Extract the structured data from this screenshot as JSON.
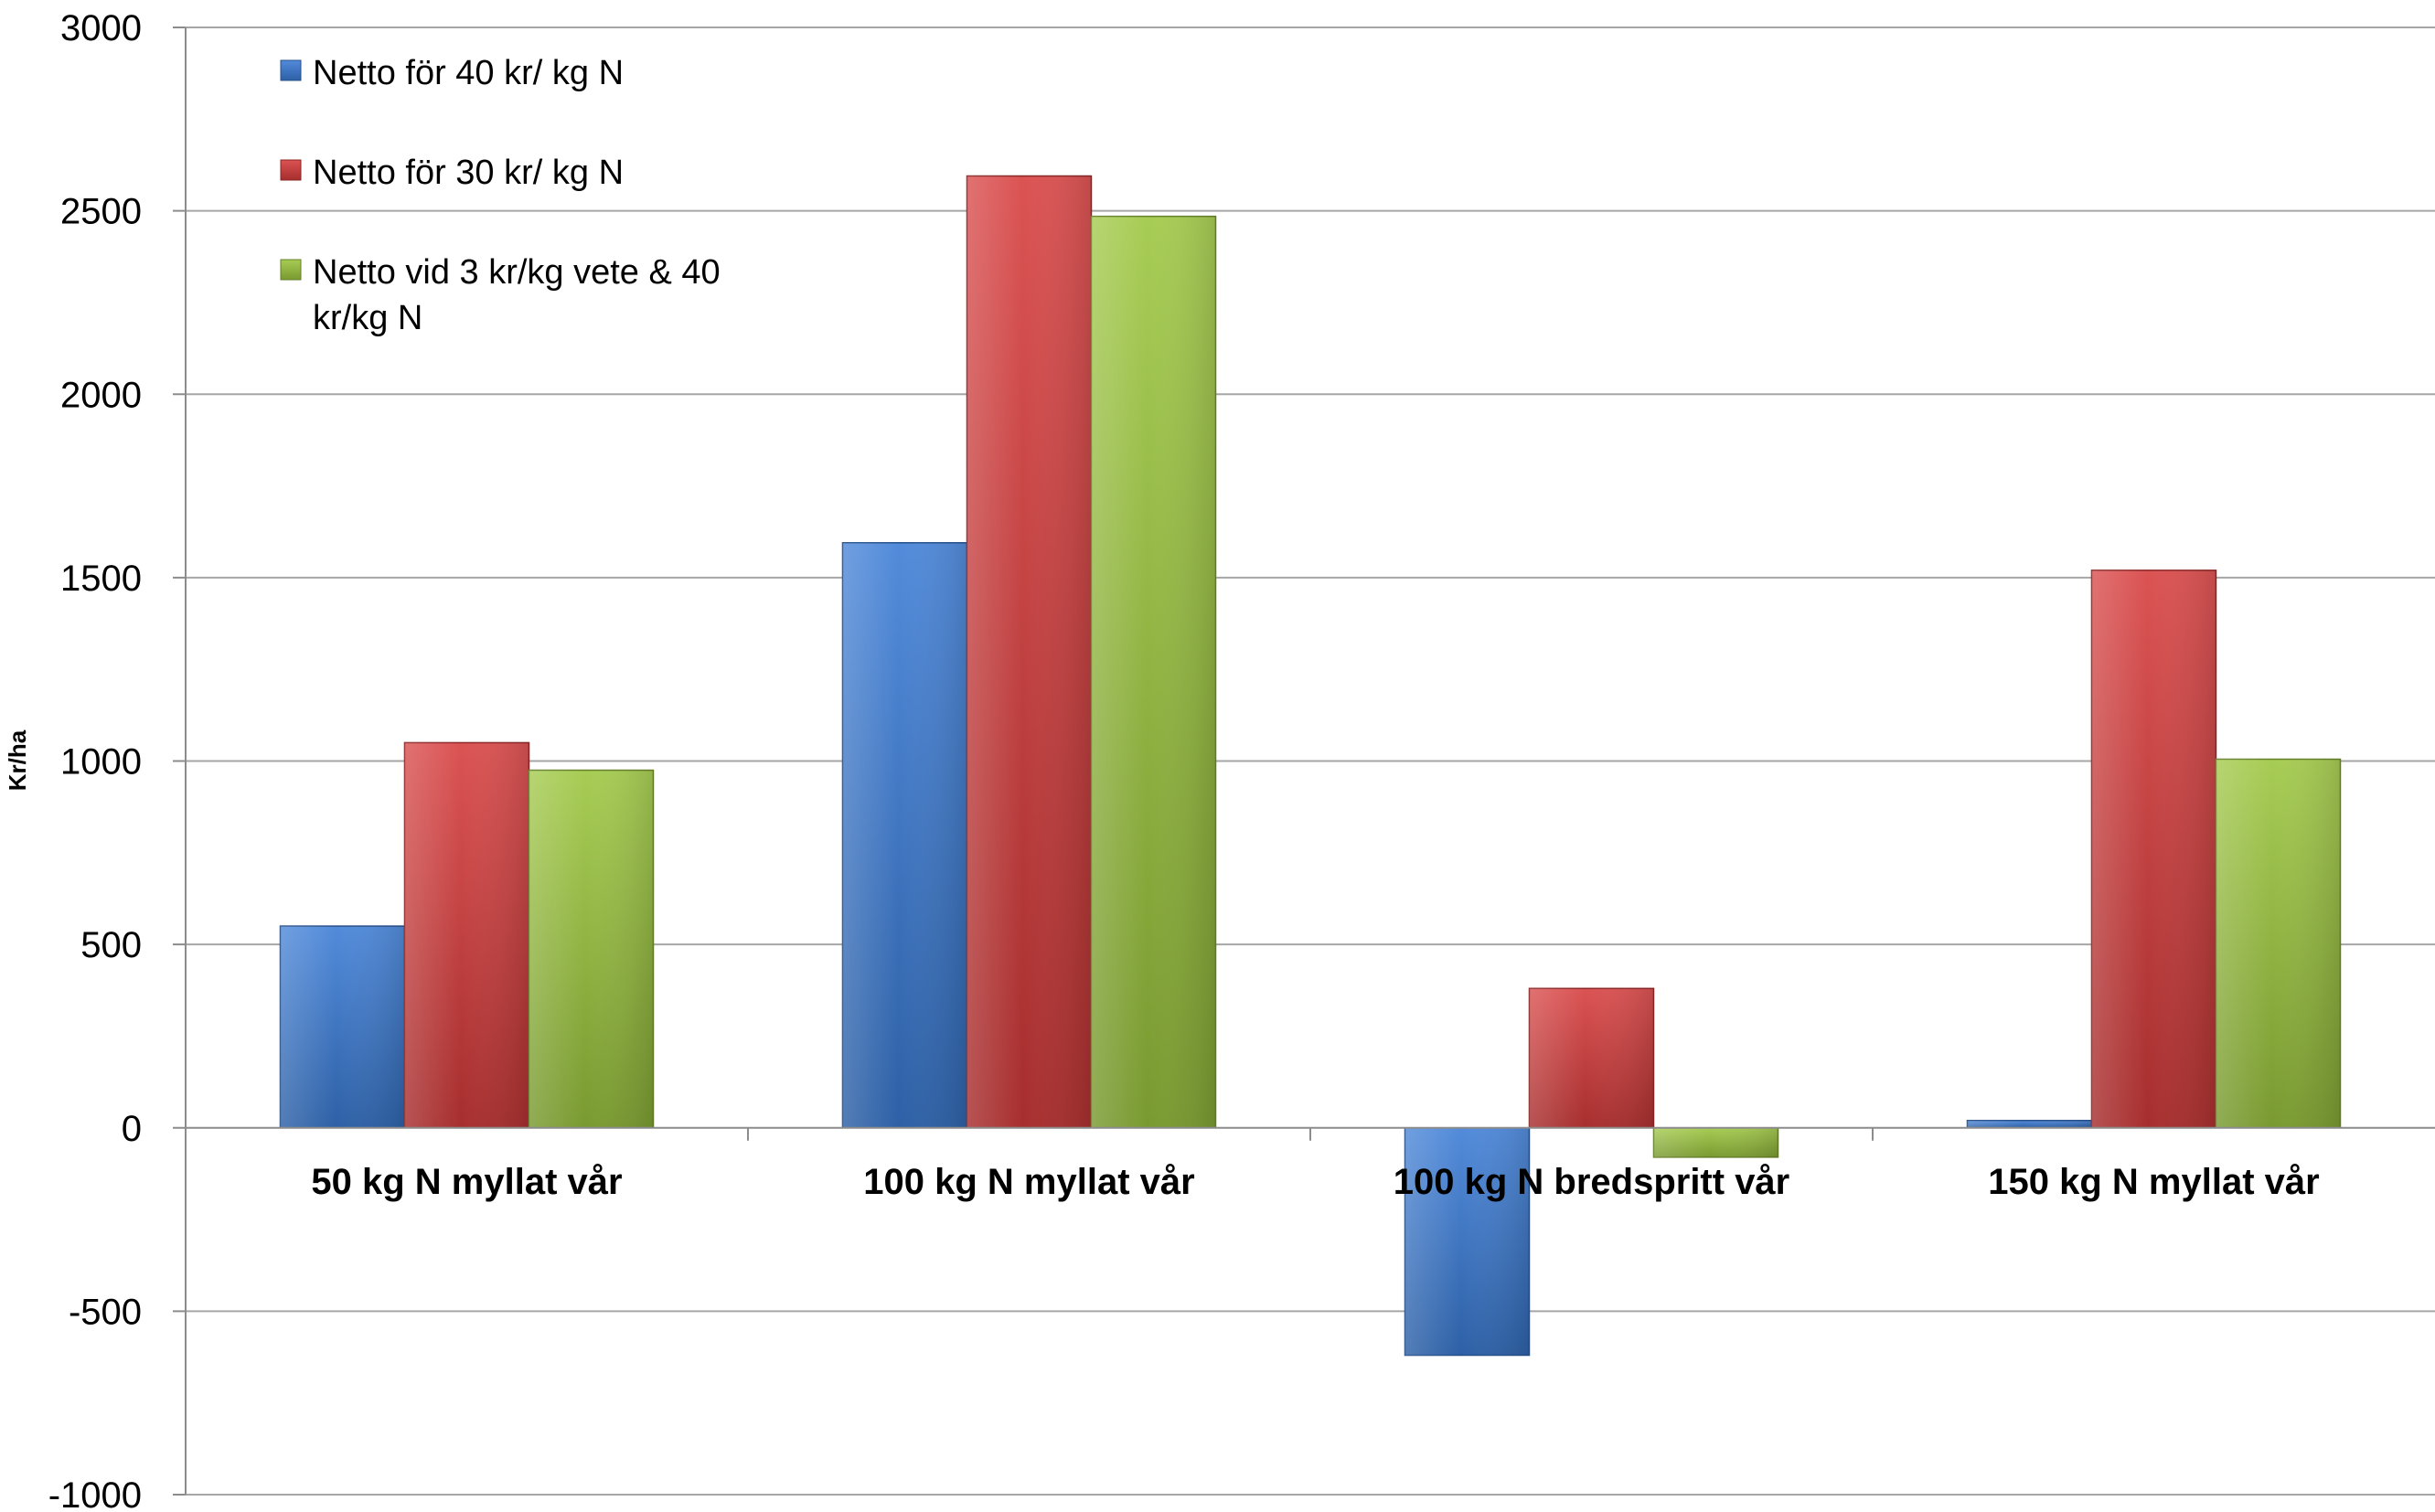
{
  "chart_data": {
    "type": "bar",
    "title": "",
    "ylabel": "Kr/ha",
    "xlabel": "",
    "ylim": [
      -1000,
      3000
    ],
    "ytick_step": 500,
    "yticks": [
      "3000",
      "2500",
      "2000",
      "1500",
      "1000",
      "500",
      "0",
      "-500",
      "-1000"
    ],
    "grid": true,
    "legend_position": "top-left",
    "categories": [
      "50 kg N myllat vår",
      "100 kg N myllat vår",
      "100 kg N bredspritt vår",
      "150 kg N myllat vår"
    ],
    "series": [
      {
        "name": "Netto för 40 kr/ kg N",
        "color": "#3A7BD5",
        "values": [
          550,
          1595,
          -620,
          20
        ]
      },
      {
        "name": "Netto för 30 kr/ kg N",
        "color": "#D63B3B",
        "values": [
          1050,
          2595,
          380,
          1520
        ]
      },
      {
        "name": "Netto vid 3 kr/kg vete & 40 kr/kg N",
        "color": "#9BC53D",
        "values": [
          975,
          2485,
          -80,
          1005
        ]
      }
    ],
    "legend": {
      "entries": [
        {
          "lines": [
            "Netto för 40 kr/ kg N"
          ]
        },
        {
          "lines": [
            "Netto för 30 kr/ kg N"
          ]
        },
        {
          "lines": [
            "Netto vid 3 kr/kg vete & 40",
            "kr/kg N"
          ]
        }
      ]
    }
  }
}
